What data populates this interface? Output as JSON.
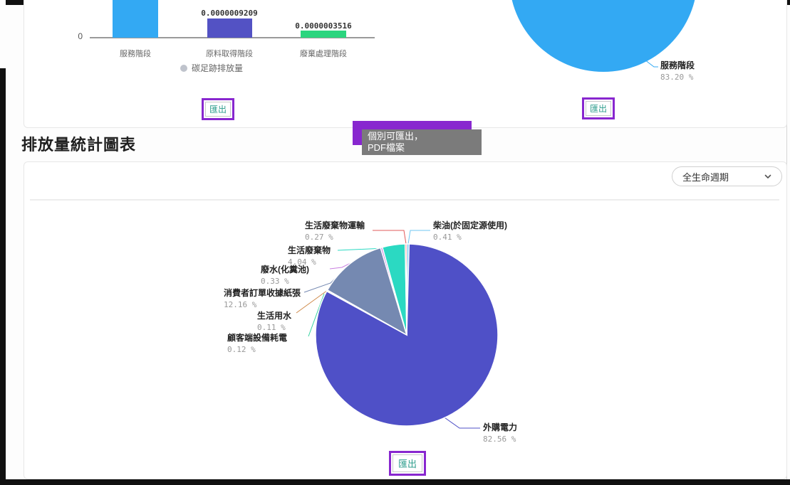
{
  "page": {
    "section_title": "排放量統計圖表",
    "export_label": "匯出",
    "tooltip": {
      "line1": "個別可匯出，",
      "line2": "PDF檔案"
    },
    "dropdown": {
      "value": "全生命週期"
    },
    "colors": {
      "annotation_purple": "#8827cf",
      "export_text": "#2f9e8e",
      "tooltip_bg": "#7b7b7b"
    }
  },
  "chart_data": [
    {
      "type": "bar",
      "title": "",
      "xlabel": "",
      "ylabel": "",
      "categories": [
        "服務階段",
        "原料取得階段",
        "廢棄處理階段"
      ],
      "series": [
        {
          "name": "碳足跡排放量",
          "values": [
            null,
            9.209e-07,
            3.516e-07
          ]
        }
      ],
      "value_labels": [
        "",
        "0.0000009209",
        "0.0000003516"
      ],
      "bar_colors": [
        "#33a9f3",
        "#5352c4",
        "#2bd57e"
      ],
      "legend": [
        "碳足跡排放量"
      ],
      "legend_position": "bottom",
      "y_ticks": [
        "0"
      ],
      "grid": false,
      "first_bar_clipped_by_viewport": true
    },
    {
      "type": "pie",
      "title": "",
      "legend_position": "none",
      "clipped_top": true,
      "slices": [
        {
          "name": "服務階段",
          "pct": 83.2,
          "pct_text": "83.20 %",
          "color": "#33a9f3"
        }
      ]
    },
    {
      "type": "pie",
      "title": "",
      "legend_position": "none",
      "start_angle": "top-clockwise",
      "slices": [
        {
          "name": "柴油(於固定源使用)",
          "pct": 0.41,
          "pct_text": "0.41 %",
          "color": "#6fc7f2"
        },
        {
          "name": "外購電力",
          "pct": 82.56,
          "pct_text": "82.56 %",
          "color": "#4f50c7"
        },
        {
          "name": "顧客端設備耗電",
          "pct": 0.12,
          "pct_text": "0.12 %",
          "color": "#35d3a0"
        },
        {
          "name": "生活用水",
          "pct": 0.11,
          "pct_text": "0.11 %",
          "color": "#cf8a4b"
        },
        {
          "name": "消費者訂單收據紙張",
          "pct": 12.16,
          "pct_text": "12.16 %",
          "color": "#7589b1"
        },
        {
          "name": "廢水(化糞池)",
          "pct": 0.33,
          "pct_text": "0.33 %",
          "color": "#c97fe0"
        },
        {
          "name": "生活廢棄物",
          "pct": 4.04,
          "pct_text": "4.04 %",
          "color": "#2bd9c2"
        },
        {
          "name": "生活廢棄物運輸",
          "pct": 0.27,
          "pct_text": "0.27 %",
          "color": "#e25b5b"
        }
      ]
    }
  ]
}
